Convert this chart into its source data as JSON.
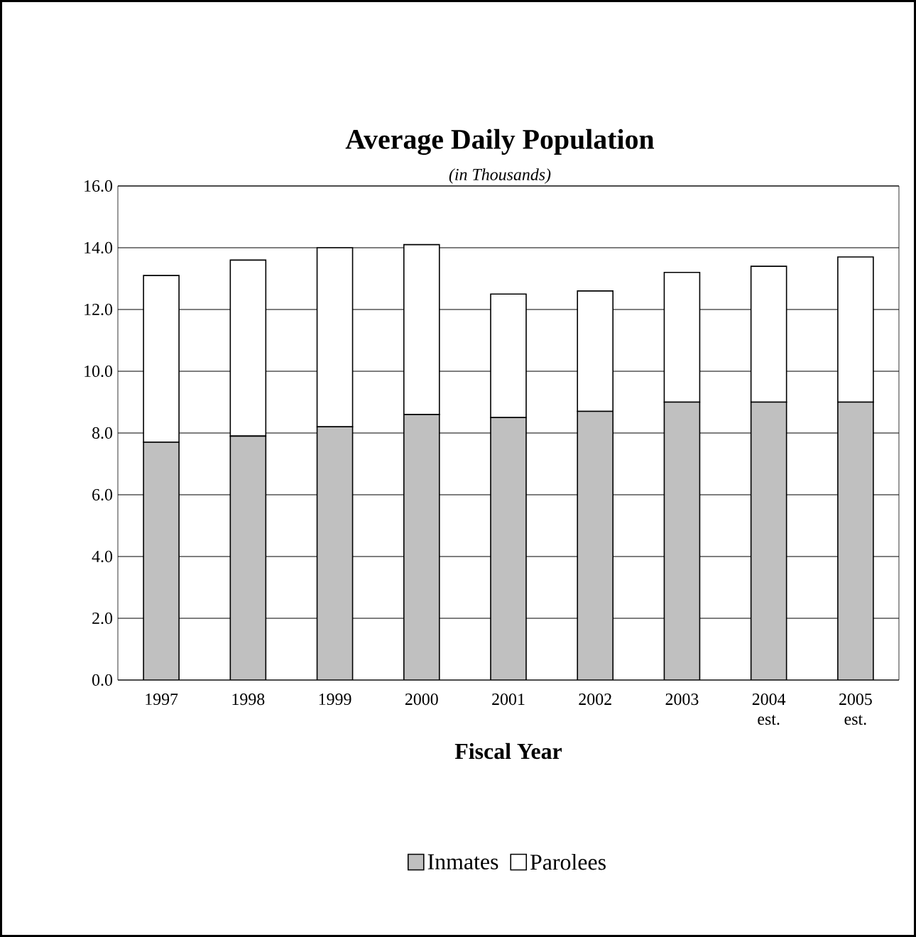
{
  "chart_data": {
    "type": "bar",
    "title": "Average Daily Population",
    "subtitle": "(in Thousands)",
    "xlabel": "Fiscal Year",
    "categories": [
      "1997",
      "1998",
      "1999",
      "2000",
      "2001",
      "2002",
      "2003",
      "2004 est.",
      "2005 est."
    ],
    "stacked": true,
    "series": [
      {
        "name": "Inmates",
        "color": "#c0c0c0",
        "values": [
          7.7,
          7.9,
          8.2,
          8.6,
          8.5,
          8.7,
          9.0,
          9.0,
          9.0
        ]
      },
      {
        "name": "Parolees",
        "color": "#ffffff",
        "values": [
          5.4,
          5.7,
          5.8,
          5.5,
          4.0,
          3.9,
          4.2,
          4.4,
          4.7
        ]
      }
    ],
    "ylim": [
      0,
      16
    ],
    "yticks": [
      {
        "value": 0,
        "label": "0.0"
      },
      {
        "value": 2,
        "label": "2.0"
      },
      {
        "value": 4,
        "label": "4.0"
      },
      {
        "value": 6,
        "label": "6.0"
      },
      {
        "value": 8,
        "label": "8.0"
      },
      {
        "value": 10,
        "label": "10.0"
      },
      {
        "value": 12,
        "label": "12.0"
      },
      {
        "value": 14,
        "label": "14.0"
      },
      {
        "value": 16,
        "label": "16.0"
      }
    ],
    "grid": "y",
    "legend": "bottom"
  }
}
